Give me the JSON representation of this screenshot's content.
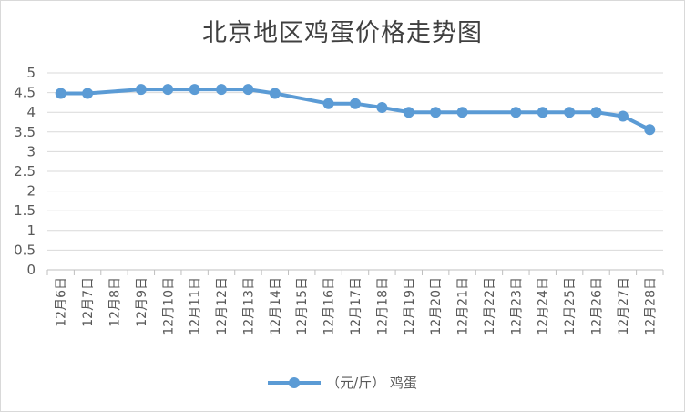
{
  "chart_data": {
    "type": "line",
    "title": "北京地区鸡蛋价格走势图",
    "xlabel": "",
    "ylabel": "",
    "ylim": [
      0,
      5
    ],
    "yticks": [
      "0",
      "0.5",
      "1",
      "1.5",
      "2",
      "2.5",
      "3",
      "3.5",
      "4",
      "4.5",
      "5"
    ],
    "grid": true,
    "legend_position": "bottom",
    "categories": [
      "12月6日",
      "12月7日",
      "12月8日",
      "12月9日",
      "12月10日",
      "12月11日",
      "12月12日",
      "12月13日",
      "12月14日",
      "12月15日",
      "12月16日",
      "12月17日",
      "12月18日",
      "12月19日",
      "12月20日",
      "12月21日",
      "12月22日",
      "12月23日",
      "12月24日",
      "12月25日",
      "12月26日",
      "12月27日",
      "12月28日"
    ],
    "series": [
      {
        "name": "（元/斤） 鸡蛋",
        "color": "#5b9bd5",
        "values": [
          4.48,
          4.48,
          null,
          4.58,
          4.58,
          4.58,
          4.58,
          4.58,
          4.48,
          null,
          4.22,
          4.22,
          4.12,
          4.0,
          4.0,
          4.0,
          null,
          4.0,
          4.0,
          4.0,
          4.0,
          3.9,
          3.56
        ]
      }
    ]
  }
}
